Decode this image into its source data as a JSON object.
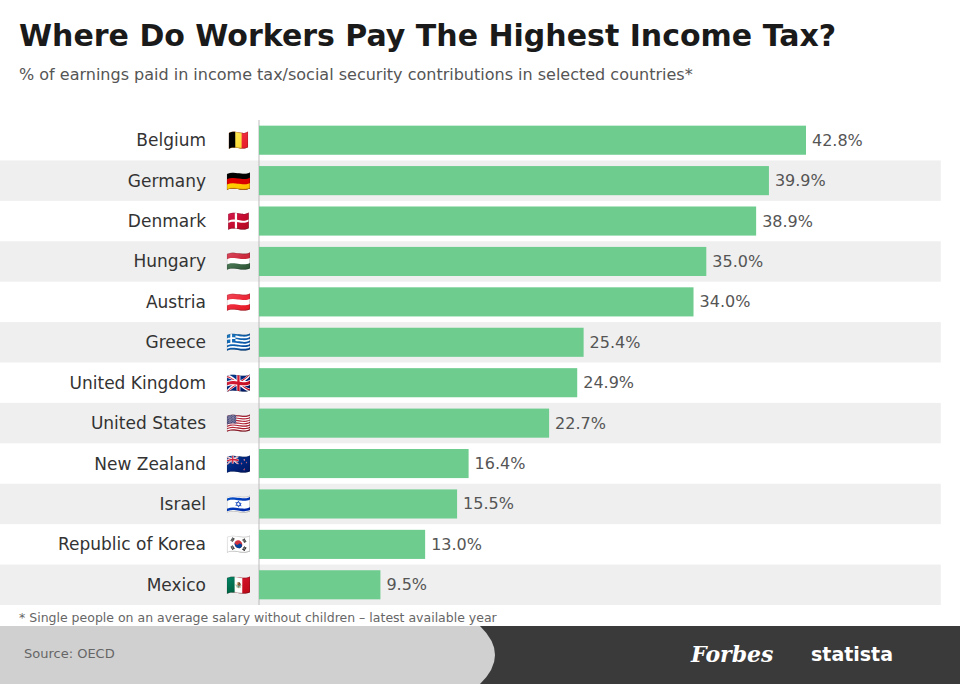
{
  "chart_data": {
    "type": "bar",
    "orientation": "horizontal",
    "title": "Where Do Workers Pay The Highest Income Tax?",
    "subtitle": "% of earnings paid in income tax/social security contributions in selected countries*",
    "footnote": "* Single people on an average salary without children – latest available year",
    "source": "Source: OECD",
    "annotations": [
      "Forbes",
      "statista"
    ],
    "categories": [
      "Belgium",
      "Germany",
      "Denmark",
      "Hungary",
      "Austria",
      "Greece",
      "United Kingdom",
      "United States",
      "New Zealand",
      "Israel",
      "Republic of Korea",
      "Mexico"
    ],
    "flags": [
      "🇧🇪",
      "🇩🇪",
      "🇩🇰",
      "🇭🇺",
      "🇦🇹",
      "🇬🇷",
      "🇬🇧",
      "🇺🇸",
      "🇳🇿",
      "🇮🇱",
      "🇰🇷",
      "🇲🇽"
    ],
    "values": [
      42.8,
      39.9,
      38.9,
      35.0,
      34.0,
      25.4,
      24.9,
      22.7,
      16.4,
      15.5,
      13.0,
      9.5
    ],
    "value_labels": [
      "42.8%",
      "39.9%",
      "38.9%",
      "35.0%",
      "34.0%",
      "25.4%",
      "24.9%",
      "22.7%",
      "16.4%",
      "15.5%",
      "13.0%",
      "9.5%"
    ],
    "data_labels": true,
    "color": "#6dcc8e",
    "xlim": [
      0,
      50
    ],
    "tick_labels": false,
    "grid": false
  }
}
